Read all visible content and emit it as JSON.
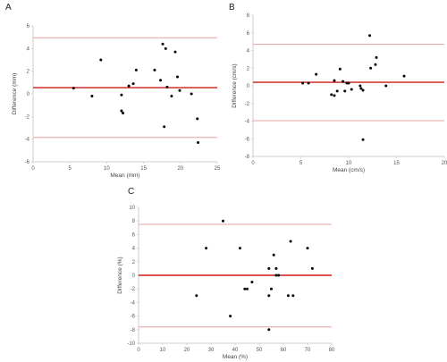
{
  "colors": {
    "limit_line": "#e8a0a0",
    "mean_line": "#d01818",
    "point": "#000000",
    "axis": "#bfbfbf",
    "text": "#555555"
  },
  "chart_data": [
    {
      "type": "scatter",
      "panel": "A",
      "xlabel": "Mean (mm)",
      "ylabel": "Difference (mm)",
      "xlim": [
        0,
        25
      ],
      "ylim": [
        -6,
        6
      ],
      "xticks": [
        0,
        5,
        10,
        15,
        20,
        25
      ],
      "yticks": [
        -6,
        -4,
        -2,
        0,
        2,
        4,
        6
      ],
      "mean_difference": 0.55,
      "upper_limit": 4.95,
      "lower_limit": -3.85,
      "points": [
        {
          "x": 5.5,
          "y": 0.5
        },
        {
          "x": 8.0,
          "y": -0.2
        },
        {
          "x": 9.2,
          "y": 3.0
        },
        {
          "x": 12.0,
          "y": -0.1
        },
        {
          "x": 12.0,
          "y": -1.5
        },
        {
          "x": 12.2,
          "y": -1.7
        },
        {
          "x": 13.0,
          "y": 0.7
        },
        {
          "x": 13.6,
          "y": 0.9
        },
        {
          "x": 14.0,
          "y": 2.1
        },
        {
          "x": 16.5,
          "y": 2.1
        },
        {
          "x": 17.3,
          "y": 1.2
        },
        {
          "x": 17.6,
          "y": 4.4
        },
        {
          "x": 17.8,
          "y": -2.9
        },
        {
          "x": 18.0,
          "y": 4.0
        },
        {
          "x": 18.2,
          "y": 0.6
        },
        {
          "x": 18.8,
          "y": -0.2
        },
        {
          "x": 19.3,
          "y": 3.7
        },
        {
          "x": 19.6,
          "y": 1.5
        },
        {
          "x": 19.9,
          "y": 0.3
        },
        {
          "x": 21.5,
          "y": 0.0
        },
        {
          "x": 22.3,
          "y": -2.2
        },
        {
          "x": 22.4,
          "y": -4.3
        }
      ]
    },
    {
      "type": "scatter",
      "panel": "B",
      "xlabel": "Mean (cm/s)",
      "ylabel": "Difference (cm/s)",
      "xlim": [
        0,
        20
      ],
      "ylim": [
        -8,
        8
      ],
      "xticks": [
        0,
        5,
        10,
        15,
        20
      ],
      "yticks": [
        -8,
        -6,
        -4,
        -2,
        0,
        2,
        4,
        6,
        8
      ],
      "mean_difference": 0.4,
      "upper_limit": 4.7,
      "lower_limit": -3.95,
      "points": [
        {
          "x": 5.2,
          "y": 0.3
        },
        {
          "x": 5.8,
          "y": 0.3
        },
        {
          "x": 6.6,
          "y": 1.3
        },
        {
          "x": 8.2,
          "y": -1.0
        },
        {
          "x": 8.5,
          "y": -1.1
        },
        {
          "x": 8.5,
          "y": 0.6
        },
        {
          "x": 8.8,
          "y": -0.6
        },
        {
          "x": 9.1,
          "y": 1.9
        },
        {
          "x": 9.4,
          "y": 0.5
        },
        {
          "x": 9.6,
          "y": -0.6
        },
        {
          "x": 9.8,
          "y": 0.3
        },
        {
          "x": 10.0,
          "y": 0.3
        },
        {
          "x": 10.3,
          "y": -0.4
        },
        {
          "x": 11.2,
          "y": 0.0
        },
        {
          "x": 11.3,
          "y": -0.3
        },
        {
          "x": 11.5,
          "y": -0.5
        },
        {
          "x": 11.5,
          "y": -6.1
        },
        {
          "x": 12.2,
          "y": 5.7
        },
        {
          "x": 12.3,
          "y": 2.0
        },
        {
          "x": 12.8,
          "y": 2.4
        },
        {
          "x": 12.9,
          "y": 3.2
        },
        {
          "x": 13.9,
          "y": 0.0
        },
        {
          "x": 15.8,
          "y": 1.1
        }
      ]
    },
    {
      "type": "scatter",
      "panel": "C",
      "xlabel": "Mean (%)",
      "ylabel": "Difference (%)",
      "xlim": [
        0,
        80
      ],
      "ylim": [
        -10,
        10
      ],
      "xticks": [
        0,
        10,
        20,
        30,
        40,
        50,
        60,
        70,
        80
      ],
      "yticks": [
        -10,
        -8,
        -6,
        -4,
        -2,
        0,
        2,
        4,
        6,
        8,
        10
      ],
      "mean_difference": 0.0,
      "upper_limit": 7.5,
      "lower_limit": -7.6,
      "points": [
        {
          "x": 24,
          "y": -3
        },
        {
          "x": 28,
          "y": 4
        },
        {
          "x": 35,
          "y": 8
        },
        {
          "x": 38,
          "y": -6
        },
        {
          "x": 42,
          "y": 4
        },
        {
          "x": 44,
          "y": -2
        },
        {
          "x": 45,
          "y": -2
        },
        {
          "x": 47,
          "y": -1
        },
        {
          "x": 54,
          "y": -8
        },
        {
          "x": 54,
          "y": -3
        },
        {
          "x": 54,
          "y": 1
        },
        {
          "x": 55,
          "y": -2
        },
        {
          "x": 56,
          "y": 3
        },
        {
          "x": 57,
          "y": 1
        },
        {
          "x": 57,
          "y": 0
        },
        {
          "x": 58,
          "y": 0
        },
        {
          "x": 62,
          "y": -3
        },
        {
          "x": 63,
          "y": 5
        },
        {
          "x": 64,
          "y": -3
        },
        {
          "x": 70,
          "y": 4
        },
        {
          "x": 72,
          "y": 1
        }
      ]
    }
  ]
}
